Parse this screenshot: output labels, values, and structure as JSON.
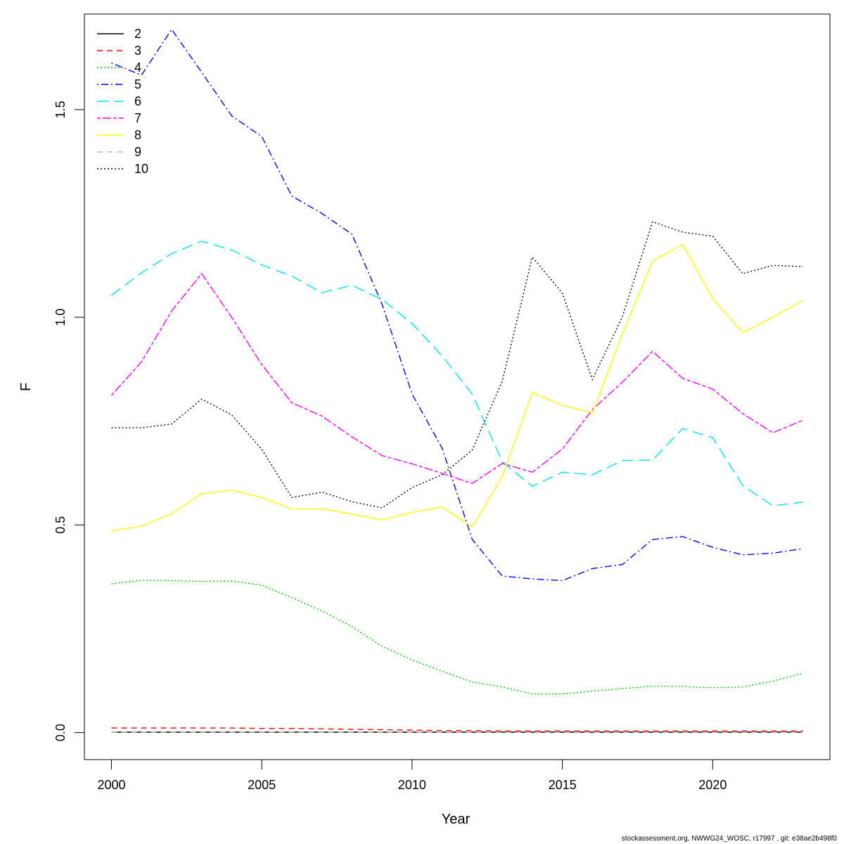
{
  "chart_data": {
    "type": "line",
    "xlabel": "Year",
    "ylabel": "F",
    "xlim": [
      1999.1,
      2023.9
    ],
    "ylim": [
      -0.065,
      1.73
    ],
    "x_ticks": [
      2000,
      2005,
      2010,
      2015,
      2020
    ],
    "y_ticks": [
      0.0,
      0.5,
      1.0,
      1.5
    ],
    "y_tick_labels": [
      "0.0",
      "0.5",
      "1.0",
      "1.5"
    ],
    "legend_position": "top-left",
    "x": [
      2000,
      2001,
      2002,
      2003,
      2004,
      2005,
      2006,
      2007,
      2008,
      2009,
      2010,
      2011,
      2012,
      2013,
      2014,
      2015,
      2016,
      2017,
      2018,
      2019,
      2020,
      2021,
      2022,
      2023
    ],
    "series": [
      {
        "name": "2",
        "color": "#000000",
        "dash": "solid",
        "values": [
          0.001,
          0.001,
          0.001,
          0.001,
          0.001,
          0.001,
          0.001,
          0.001,
          0.001,
          0.001,
          0.001,
          0.001,
          0.001,
          0.001,
          0.001,
          0.001,
          0.001,
          0.001,
          0.001,
          0.001,
          0.001,
          0.001,
          0.001,
          0.001
        ]
      },
      {
        "name": "3",
        "color": "#ff0000",
        "dash": "dashed",
        "values": [
          0.011,
          0.011,
          0.011,
          0.011,
          0.011,
          0.01,
          0.01,
          0.009,
          0.008,
          0.007,
          0.006,
          0.005,
          0.005,
          0.004,
          0.004,
          0.004,
          0.004,
          0.004,
          0.004,
          0.004,
          0.004,
          0.004,
          0.004,
          0.004
        ]
      },
      {
        "name": "4",
        "color": "#00cd00",
        "dash": "dotted",
        "values": [
          0.358,
          0.367,
          0.366,
          0.364,
          0.365,
          0.355,
          0.325,
          0.293,
          0.255,
          0.208,
          0.175,
          0.148,
          0.122,
          0.11,
          0.093,
          0.093,
          0.1,
          0.106,
          0.112,
          0.111,
          0.108,
          0.11,
          0.124,
          0.143
        ]
      },
      {
        "name": "5",
        "color": "#0000ff",
        "dash": "dotdash",
        "values": [
          1.612,
          1.583,
          1.693,
          1.59,
          1.485,
          1.435,
          1.292,
          1.25,
          1.2,
          1.032,
          0.815,
          0.685,
          0.465,
          0.377,
          0.37,
          0.366,
          0.395,
          0.405,
          0.465,
          0.472,
          0.446,
          0.428,
          0.432,
          0.443
        ]
      },
      {
        "name": "6",
        "color": "#00e5ee",
        "dash": "longdash",
        "values": [
          1.053,
          1.107,
          1.153,
          1.183,
          1.162,
          1.126,
          1.099,
          1.059,
          1.077,
          1.043,
          0.985,
          0.907,
          0.815,
          0.652,
          0.593,
          0.627,
          0.621,
          0.655,
          0.656,
          0.732,
          0.71,
          0.595,
          0.546,
          0.555
        ]
      },
      {
        "name": "7",
        "color": "#ff00ff",
        "dash": "twodash",
        "values": [
          0.812,
          0.893,
          1.015,
          1.105,
          1.0,
          0.886,
          0.794,
          0.762,
          0.712,
          0.667,
          0.647,
          0.624,
          0.6,
          0.648,
          0.627,
          0.683,
          0.778,
          0.844,
          0.918,
          0.853,
          0.827,
          0.768,
          0.722,
          0.752
        ]
      },
      {
        "name": "8",
        "color": "#ffff00",
        "dash": "solid",
        "values": [
          0.486,
          0.497,
          0.527,
          0.575,
          0.584,
          0.566,
          0.538,
          0.539,
          0.526,
          0.512,
          0.53,
          0.543,
          0.495,
          0.617,
          0.819,
          0.788,
          0.77,
          0.96,
          1.135,
          1.175,
          1.045,
          0.963,
          1.0,
          1.04
        ]
      },
      {
        "name": "9",
        "color": "#bebebe",
        "dash": "dashed",
        "values": [
          0.001,
          0.001,
          0.001,
          0.001,
          0.001,
          0.001,
          0.001,
          0.001,
          0.001,
          0.001,
          0.001,
          0.001,
          0.001,
          0.001,
          0.001,
          0.001,
          0.001,
          0.001,
          0.001,
          0.001,
          0.001,
          0.001,
          0.001,
          0.001
        ]
      },
      {
        "name": "10",
        "color": "#000000",
        "dash": "dotted",
        "values": [
          0.734,
          0.734,
          0.743,
          0.803,
          0.765,
          0.682,
          0.566,
          0.579,
          0.556,
          0.541,
          0.59,
          0.621,
          0.68,
          0.846,
          1.145,
          1.058,
          0.85,
          1.002,
          1.23,
          1.205,
          1.195,
          1.105,
          1.125,
          1.122
        ]
      }
    ]
  },
  "footer": {
    "credit": "stockassessment.org, NWWG24_WOSC, r17997 , git: e38ae2b498f0"
  }
}
